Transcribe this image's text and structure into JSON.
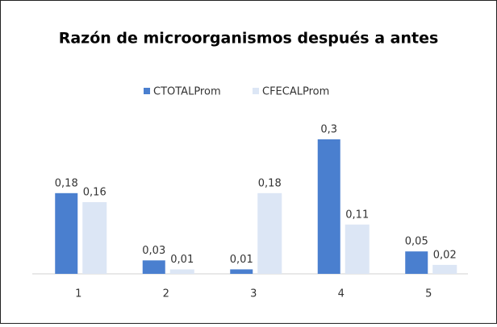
{
  "chart_data": {
    "type": "bar",
    "title": "Razón de microorganismos después a antes",
    "categories": [
      "1",
      "2",
      "3",
      "4",
      "5"
    ],
    "series": [
      {
        "name": "CTOTALProm",
        "color": "#4a7fcf",
        "values": [
          0.18,
          0.03,
          0.01,
          0.3,
          0.05
        ],
        "value_labels": [
          "0,18",
          "0,03",
          "0,01",
          "0,3",
          "0,05"
        ]
      },
      {
        "name": "CFECALProm",
        "color": "#dce6f5",
        "values": [
          0.16,
          0.01,
          0.18,
          0.11,
          0.02
        ],
        "value_labels": [
          "0,16",
          "0,01",
          "0,18",
          "0,11",
          "0,02"
        ]
      }
    ],
    "legend": "top"
  }
}
